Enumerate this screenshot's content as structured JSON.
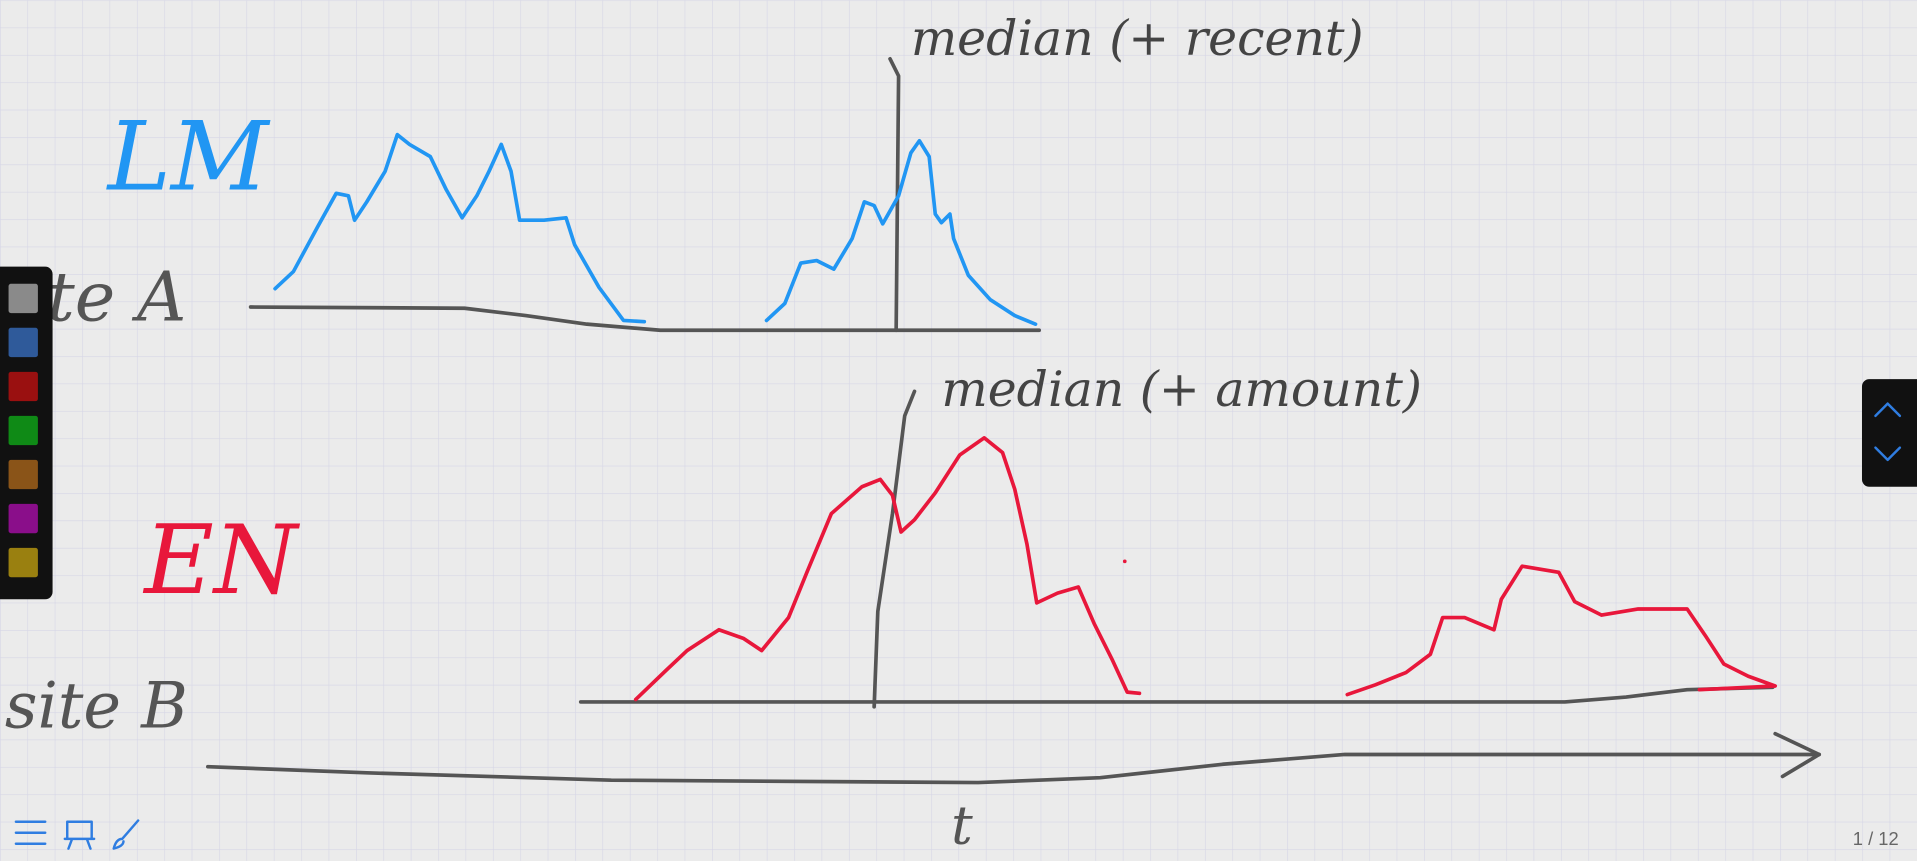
{
  "canvas": {
    "annotations": [
      {
        "text": "median (+ recent)"
      },
      {
        "text": "LM"
      },
      {
        "text": "site A"
      },
      {
        "text": "median (+ amount)"
      },
      {
        "text": "EN"
      },
      {
        "text": "site B"
      },
      {
        "text": "t"
      }
    ]
  },
  "pager": {
    "label": "1 / 12"
  }
}
